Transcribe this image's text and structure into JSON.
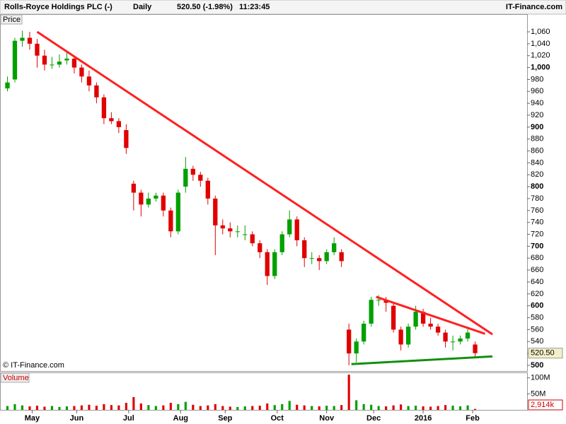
{
  "header": {
    "title": "Rolls-Royce Holdings PLC (-)",
    "interval": "Daily",
    "quote": "520.50 (-1.98%)",
    "time": "11:23:45",
    "brand": "IT-Finance.com"
  },
  "chart_data": [
    {
      "type": "candlestick",
      "label": "Price",
      "watermark": "© IT-Finance.com",
      "up_color": "#00a000",
      "down_color": "#e00000",
      "x": [
        3,
        6,
        9,
        12,
        15,
        18,
        21,
        24,
        27,
        30,
        33,
        36,
        39,
        42,
        45,
        48,
        51,
        54,
        57,
        60,
        63,
        66,
        69,
        72,
        75,
        78,
        81,
        84,
        87,
        90,
        93,
        96,
        99,
        102,
        105,
        108,
        111,
        114,
        117,
        120,
        123,
        126,
        129,
        132,
        135,
        138,
        141,
        144,
        147,
        150,
        153,
        156,
        159,
        162,
        165,
        168,
        171,
        174,
        177,
        180,
        183,
        186,
        189,
        192
      ],
      "open": [
        965,
        980,
        1045,
        1050,
        1040,
        1020,
        1005,
        1005,
        1012,
        1015,
        1000,
        985,
        970,
        950,
        915,
        910,
        895,
        805,
        790,
        770,
        780,
        785,
        760,
        725,
        800,
        830,
        820,
        810,
        780,
        735,
        730,
        725,
        720,
        720,
        705,
        690,
        650,
        690,
        720,
        745,
        710,
        680,
        680,
        675,
        690,
        690,
        560,
        520,
        540,
        570,
        610,
        610,
        600,
        560,
        535,
        565,
        590,
        570,
        565,
        555,
        540,
        540,
        545,
        535
      ],
      "high": [
        985,
        1050,
        1062,
        1060,
        1048,
        1030,
        1018,
        1022,
        1025,
        1020,
        1005,
        995,
        975,
        955,
        925,
        915,
        905,
        810,
        795,
        790,
        790,
        790,
        765,
        795,
        850,
        835,
        825,
        815,
        785,
        745,
        740,
        735,
        735,
        725,
        710,
        695,
        695,
        725,
        760,
        750,
        715,
        690,
        685,
        695,
        715,
        695,
        570,
        545,
        575,
        615,
        618,
        615,
        605,
        565,
        570,
        600,
        595,
        580,
        570,
        560,
        550,
        550,
        565,
        540
      ],
      "low": [
        960,
        975,
        1035,
        1030,
        1000,
        995,
        998,
        1000,
        1005,
        990,
        975,
        960,
        940,
        905,
        905,
        890,
        855,
        760,
        750,
        765,
        775,
        750,
        715,
        720,
        790,
        810,
        800,
        770,
        685,
        720,
        715,
        715,
        710,
        700,
        680,
        635,
        645,
        685,
        715,
        700,
        665,
        670,
        660,
        670,
        685,
        665,
        500,
        505,
        535,
        565,
        600,
        590,
        555,
        525,
        530,
        560,
        565,
        560,
        550,
        530,
        525,
        535,
        540,
        515
      ],
      "close": [
        975,
        1045,
        1050,
        1040,
        1020,
        1005,
        1005,
        1010,
        1015,
        1000,
        985,
        970,
        950,
        915,
        910,
        900,
        865,
        790,
        770,
        780,
        785,
        760,
        725,
        790,
        830,
        820,
        810,
        780,
        735,
        730,
        725,
        725,
        720,
        705,
        690,
        650,
        690,
        720,
        745,
        710,
        680,
        680,
        675,
        690,
        705,
        675,
        520,
        540,
        570,
        610,
        610,
        605,
        560,
        535,
        565,
        590,
        570,
        565,
        555,
        540,
        540,
        545,
        555,
        520.5
      ],
      "last_value_label": "520.50",
      "trendlines": [
        {
          "color": "#ff2020",
          "x": [
            15,
            199
          ],
          "y": [
            1060,
            552
          ]
        },
        {
          "color": "#ff2020",
          "x": [
            152,
            196
          ],
          "y": [
            615,
            553
          ]
        },
        {
          "color": "#109010",
          "x": [
            142,
            199
          ],
          "y": [
            502,
            515
          ]
        }
      ],
      "xlim": [
        0,
        213
      ],
      "ylim": [
        490.5,
        1089.7
      ],
      "xticks": [
        {
          "value": 13,
          "label": "May"
        },
        {
          "value": 31,
          "label": "Jun"
        },
        {
          "value": 52,
          "label": "Jul"
        },
        {
          "value": 73,
          "label": "Aug"
        },
        {
          "value": 91,
          "label": "Sep"
        },
        {
          "value": 112,
          "label": "Oct"
        },
        {
          "value": 132,
          "label": "Nov"
        },
        {
          "value": 151,
          "label": "Dec"
        },
        {
          "value": 171,
          "label": "2016"
        },
        {
          "value": 191,
          "label": "Feb"
        }
      ],
      "yticks": [
        500,
        520,
        540,
        560,
        580,
        600,
        620,
        640,
        660,
        680,
        700,
        720,
        740,
        760,
        780,
        800,
        820,
        840,
        860,
        880,
        900,
        920,
        940,
        960,
        980,
        {
          "value": 1000,
          "label": "1,000"
        },
        {
          "value": 1020,
          "label": "1,020"
        },
        {
          "value": 1040,
          "label": "1,040"
        },
        {
          "value": 1060,
          "label": "1,060"
        }
      ]
    },
    {
      "type": "bar",
      "label": "Volume",
      "values": [
        12000000,
        18000000,
        14000000,
        11000000,
        13000000,
        10000000,
        12000000,
        9000000,
        11000000,
        12000000,
        14000000,
        16000000,
        13000000,
        18000000,
        15000000,
        14000000,
        22000000,
        40000000,
        20000000,
        15000000,
        12000000,
        14000000,
        22000000,
        18000000,
        25000000,
        16000000,
        12000000,
        14000000,
        18000000,
        12000000,
        10000000,
        9000000,
        11000000,
        12000000,
        13000000,
        20000000,
        15000000,
        18000000,
        28000000,
        16000000,
        14000000,
        12000000,
        11000000,
        13000000,
        12000000,
        15000000,
        110000000,
        30000000,
        18000000,
        16000000,
        12000000,
        11000000,
        14000000,
        17000000,
        12000000,
        13000000,
        11000000,
        10000000,
        12000000,
        15000000,
        13000000,
        11000000,
        14000000,
        2914000
      ],
      "last_value_label": "2,914k",
      "ylim": [
        0,
        117000000
      ],
      "yticks": [
        {
          "value": 50000000,
          "label": "50M"
        },
        {
          "value": 100000000,
          "label": "100M"
        }
      ]
    }
  ]
}
